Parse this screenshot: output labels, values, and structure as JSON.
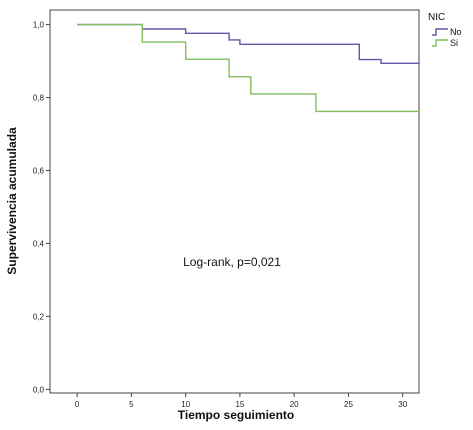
{
  "chart_data": {
    "type": "line",
    "step": true,
    "xlabel": "Tiempo seguimiento",
    "ylabel": "Supervivencia acumulada",
    "xlim": [
      -2.5,
      31.5
    ],
    "ylim": [
      -0.01,
      1.04
    ],
    "x_ticks": [
      0,
      5,
      10,
      15,
      20,
      25,
      30
    ],
    "x_tick_labels": [
      "0",
      "5",
      "10",
      "15",
      "20",
      "25",
      "30"
    ],
    "y_ticks": [
      0.0,
      0.2,
      0.4,
      0.6,
      0.8,
      1.0
    ],
    "y_tick_labels": [
      "0,0",
      "0,2",
      "0,4",
      "0,6",
      "0,8",
      "1,0"
    ],
    "grid": false,
    "legend_title": "NIC",
    "legend_position": "right-outside-top",
    "annotation": "Log-rank, p=0,021",
    "series": [
      {
        "name": "No",
        "color": "#5a5aa6",
        "x": [
          0,
          6,
          10,
          14,
          15,
          26,
          28,
          31.5
        ],
        "y": [
          1.0,
          0.988,
          0.976,
          0.958,
          0.946,
          0.904,
          0.894,
          0.894
        ]
      },
      {
        "name": "Si",
        "color": "#7fbf5f",
        "x": [
          0,
          6,
          10,
          14,
          16,
          22,
          31.5
        ],
        "y": [
          1.0,
          0.952,
          0.905,
          0.857,
          0.81,
          0.762,
          0.762
        ]
      }
    ]
  }
}
